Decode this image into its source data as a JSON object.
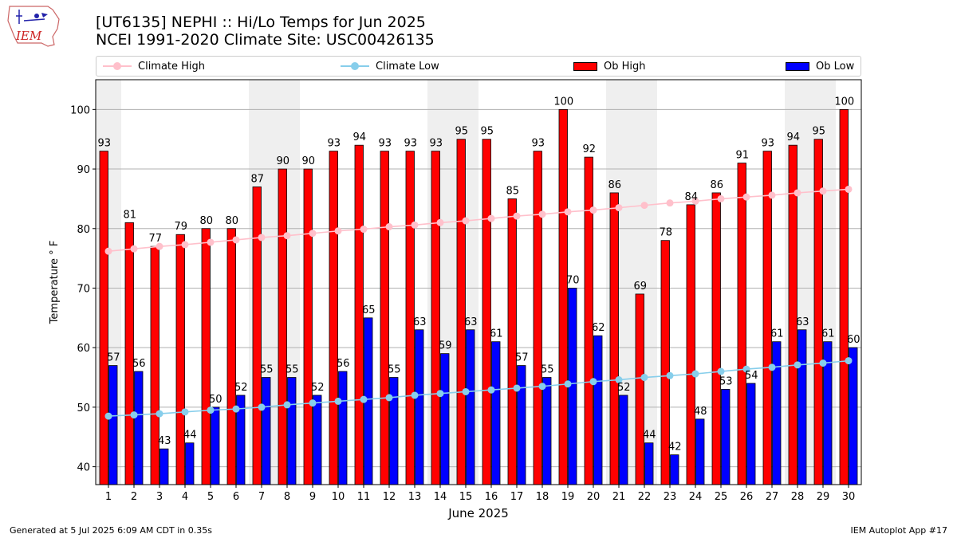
{
  "logo": {
    "text": "IEM"
  },
  "header": {
    "title_line1": "[UT6135] NEPHI :: Hi/Lo Temps for Jun 2025",
    "title_line2": "NCEI 1991-2020 Climate Site: USC00426135"
  },
  "legend": {
    "items": [
      {
        "label": "Climate High",
        "kind": "line",
        "color": "#ffc0cb"
      },
      {
        "label": "Climate Low",
        "kind": "line",
        "color": "#87ceeb"
      },
      {
        "label": "Ob High",
        "kind": "bar",
        "color": "#ff0000"
      },
      {
        "label": "Ob Low",
        "kind": "bar",
        "color": "#0000ff"
      }
    ]
  },
  "footer": {
    "left": "Generated at 5 Jul 2025 6:09 AM CDT in 0.35s",
    "right": "IEM Autoplot App #17"
  },
  "chart_data": {
    "type": "bar",
    "xlabel": "June 2025",
    "ylabel": "Temperature ° F",
    "ylim": [
      37,
      105
    ],
    "yticks": [
      40,
      50,
      60,
      70,
      80,
      90,
      100
    ],
    "grid": "horizontal",
    "legend_position": "top",
    "categories": [
      "1",
      "2",
      "3",
      "4",
      "5",
      "6",
      "7",
      "8",
      "9",
      "10",
      "11",
      "12",
      "13",
      "14",
      "15",
      "16",
      "17",
      "18",
      "19",
      "20",
      "21",
      "22",
      "23",
      "24",
      "25",
      "26",
      "27",
      "28",
      "29",
      "30"
    ],
    "weekend_shading_days": [
      1,
      7,
      8,
      14,
      15,
      21,
      22,
      28,
      29
    ],
    "series": [
      {
        "name": "Ob High",
        "kind": "bar",
        "color": "#ff0000",
        "values": [
          93,
          81,
          77,
          79,
          80,
          80,
          87,
          90,
          90,
          93,
          94,
          93,
          93,
          93,
          95,
          95,
          85,
          93,
          100,
          92,
          86,
          69,
          78,
          84,
          86,
          91,
          93,
          94,
          95,
          100
        ]
      },
      {
        "name": "Ob Low",
        "kind": "bar",
        "color": "#0000ff",
        "values": [
          57,
          56,
          43,
          44,
          50,
          52,
          55,
          55,
          52,
          56,
          65,
          55,
          63,
          59,
          63,
          61,
          57,
          55,
          70,
          62,
          52,
          44,
          42,
          48,
          53,
          54,
          61,
          63,
          61,
          60
        ]
      },
      {
        "name": "Climate High",
        "kind": "line",
        "color": "#ffc0cb",
        "values": [
          76.2,
          76.6,
          77.0,
          77.3,
          77.7,
          78.1,
          78.5,
          78.8,
          79.2,
          79.6,
          79.9,
          80.3,
          80.6,
          81.0,
          81.3,
          81.7,
          82.1,
          82.4,
          82.8,
          83.1,
          83.5,
          83.9,
          84.3,
          84.6,
          85.0,
          85.3,
          85.6,
          86.0,
          86.3,
          86.6
        ]
      },
      {
        "name": "Climate Low",
        "kind": "line",
        "color": "#87ceeb",
        "values": [
          48.5,
          48.7,
          48.9,
          49.2,
          49.5,
          49.7,
          50.0,
          50.4,
          50.7,
          51.0,
          51.3,
          51.6,
          52.0,
          52.3,
          52.6,
          52.9,
          53.2,
          53.5,
          53.9,
          54.3,
          54.6,
          55.0,
          55.3,
          55.6,
          56.0,
          56.4,
          56.7,
          57.1,
          57.4,
          57.8
        ]
      }
    ]
  }
}
